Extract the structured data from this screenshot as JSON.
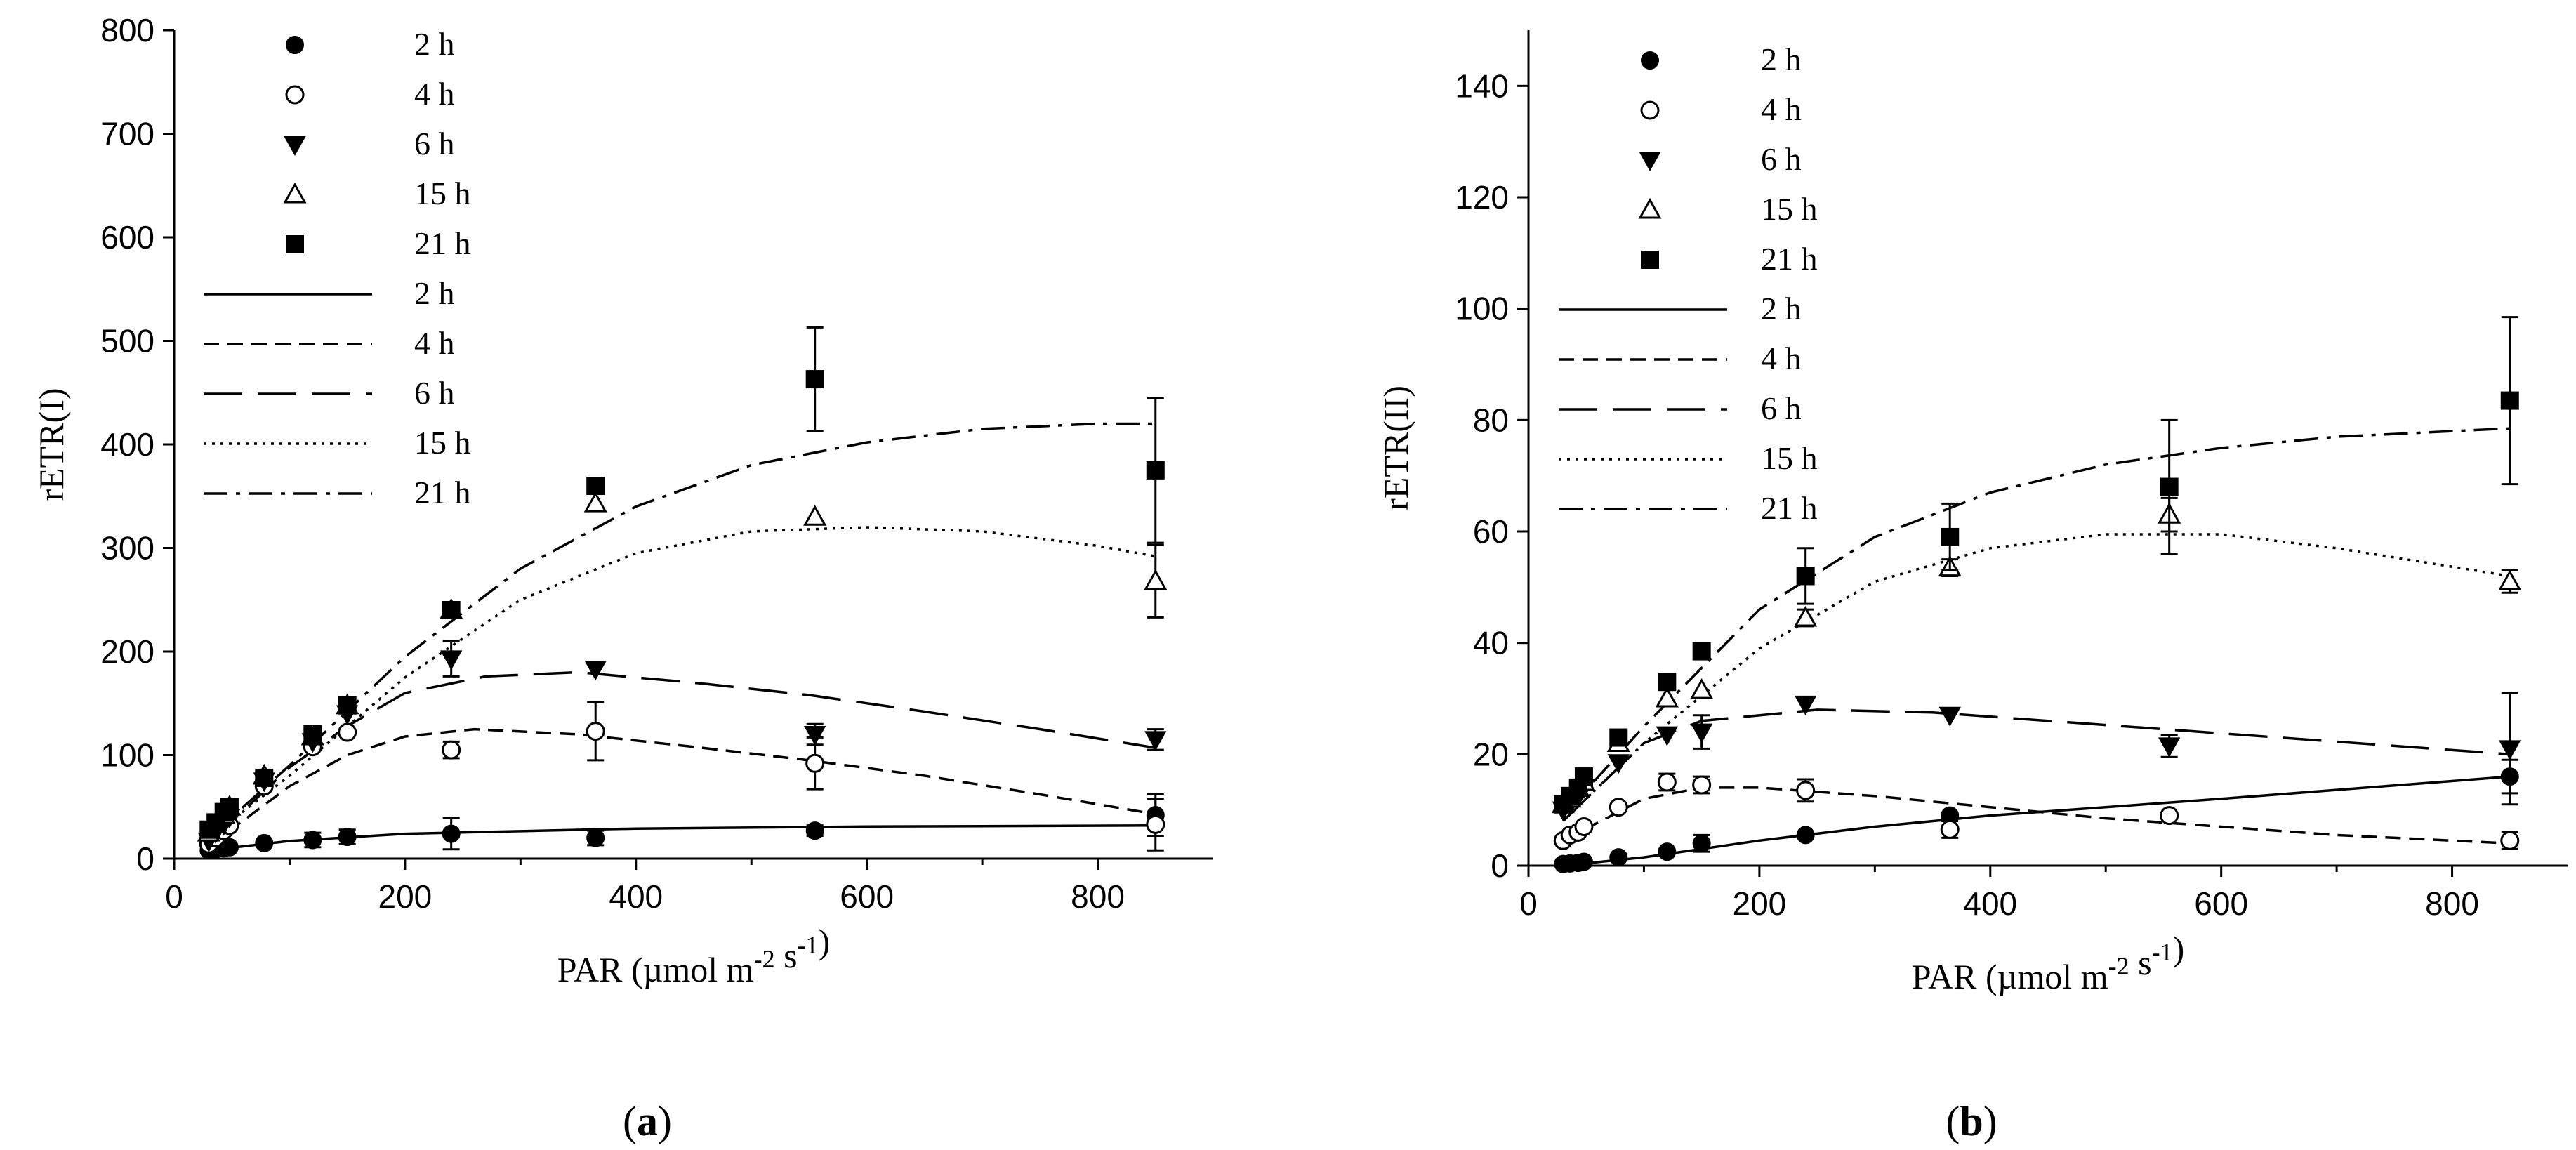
{
  "chart_data": [
    {
      "type": "scatter",
      "panel": "(a)",
      "panel_letter": "a",
      "ylabel": "rETR(I)",
      "xlabel": "PAR (µmol m-2 s-1)",
      "xlim": [
        0,
        900
      ],
      "ylim": [
        0,
        800
      ],
      "xticks": [
        0,
        200,
        400,
        600,
        800
      ],
      "yticks": [
        0,
        100,
        200,
        300,
        400,
        500,
        600,
        700,
        800
      ],
      "legend_markers": [
        "2 h",
        "4 h",
        "6 h",
        "15 h",
        "21 h"
      ],
      "legend_lines": [
        "2 h",
        "4 h",
        "6 h",
        "15 h",
        "21 h"
      ],
      "x": [
        30,
        36,
        43,
        48,
        78,
        120,
        150,
        240,
        365,
        555,
        850
      ],
      "series": [
        {
          "name": "2 h",
          "marker": "filled-circle",
          "line": "solid",
          "values": [
            8,
            9,
            10,
            11,
            15,
            18,
            21,
            24,
            20,
            27,
            42
          ],
          "errors": [
            0,
            0,
            0,
            0,
            0,
            7,
            7,
            15,
            7,
            5,
            20
          ],
          "fit": [
            [
              30,
              8
            ],
            [
              100,
              17
            ],
            [
              200,
              24
            ],
            [
              400,
              29
            ],
            [
              600,
              31
            ],
            [
              850,
              32
            ]
          ]
        },
        {
          "name": "4 h",
          "marker": "open-circle",
          "line": "short-dash",
          "values": [
            14,
            20,
            27,
            32,
            70,
            108,
            122,
            105,
            123,
            92,
            33
          ],
          "errors": [
            0,
            0,
            0,
            0,
            0,
            0,
            0,
            8,
            28,
            25,
            25
          ],
          "fit": [
            [
              30,
              12
            ],
            [
              100,
              70
            ],
            [
              150,
              100
            ],
            [
              200,
              118
            ],
            [
              260,
              125
            ],
            [
              350,
              120
            ],
            [
              450,
              108
            ],
            [
              550,
              95
            ],
            [
              650,
              80
            ],
            [
              750,
              62
            ],
            [
              850,
              43
            ]
          ]
        },
        {
          "name": "6 h",
          "marker": "filled-triangle-down",
          "line": "long-dash",
          "values": [
            17,
            25,
            33,
            40,
            75,
            113,
            140,
            193,
            183,
            120,
            115
          ],
          "errors": [
            0,
            0,
            0,
            0,
            0,
            0,
            0,
            17,
            0,
            10,
            10
          ],
          "fit": [
            [
              30,
              15
            ],
            [
              100,
              88
            ],
            [
              150,
              128
            ],
            [
              200,
              160
            ],
            [
              270,
              176
            ],
            [
              350,
              180
            ],
            [
              450,
              170
            ],
            [
              550,
              158
            ],
            [
              650,
              142
            ],
            [
              750,
              125
            ],
            [
              850,
              107
            ]
          ]
        },
        {
          "name": "15 h",
          "marker": "open-triangle-up",
          "line": "dotted",
          "values": [
            25,
            33,
            42,
            50,
            80,
            118,
            148,
            240,
            343,
            330,
            268
          ],
          "errors": [
            0,
            0,
            0,
            0,
            0,
            0,
            0,
            0,
            0,
            0,
            35
          ],
          "fit": [
            [
              30,
              20
            ],
            [
              100,
              80
            ],
            [
              200,
              175
            ],
            [
              300,
              250
            ],
            [
              400,
              295
            ],
            [
              500,
              316
            ],
            [
              600,
              320
            ],
            [
              700,
              316
            ],
            [
              800,
              302
            ],
            [
              850,
              292
            ]
          ]
        },
        {
          "name": "21 h",
          "marker": "filled-square",
          "line": "dash-dot",
          "values": [
            28,
            35,
            45,
            50,
            78,
            120,
            148,
            240,
            360,
            463,
            375
          ],
          "errors": [
            0,
            0,
            0,
            0,
            0,
            0,
            0,
            0,
            6,
            50,
            70
          ],
          "fit": [
            [
              30,
              20
            ],
            [
              100,
              90
            ],
            [
              200,
              195
            ],
            [
              300,
              280
            ],
            [
              400,
              340
            ],
            [
              500,
              380
            ],
            [
              600,
              402
            ],
            [
              700,
              415
            ],
            [
              800,
              420
            ],
            [
              850,
              420
            ]
          ]
        }
      ]
    },
    {
      "type": "scatter",
      "panel": "(b)",
      "panel_letter": "b",
      "ylabel": "rETR(II)",
      "xlabel": "PAR (µmol m-2 s-1)",
      "xlim": [
        0,
        900
      ],
      "ylim": [
        0,
        150
      ],
      "xticks": [
        0,
        200,
        400,
        600,
        800
      ],
      "yticks": [
        0,
        20,
        40,
        60,
        80,
        100,
        120,
        140
      ],
      "legend_markers": [
        "2 h",
        "4 h",
        "6 h",
        "15 h",
        "21 h"
      ],
      "legend_lines": [
        "2 h",
        "4 h",
        "6 h",
        "15 h",
        "21 h"
      ],
      "x": [
        30,
        36,
        43,
        48,
        78,
        120,
        150,
        240,
        365,
        555,
        850
      ],
      "series": [
        {
          "name": "2 h",
          "marker": "filled-circle",
          "line": "solid",
          "values": [
            0.3,
            0.4,
            0.5,
            0.7,
            1.5,
            2.5,
            4,
            5.5,
            9,
            9,
            16
          ],
          "errors": [
            0,
            0,
            0,
            0,
            0,
            0,
            1.5,
            0,
            0,
            0,
            3
          ],
          "fit": [
            [
              30,
              0
            ],
            [
              100,
              1.5
            ],
            [
              200,
              4.5
            ],
            [
              300,
              7
            ],
            [
              400,
              9
            ],
            [
              600,
              12
            ],
            [
              850,
              16
            ]
          ]
        },
        {
          "name": "4 h",
          "marker": "open-circle",
          "line": "short-dash",
          "values": [
            4.5,
            5.5,
            6,
            7,
            10.5,
            15,
            14.5,
            13.5,
            6.5,
            9,
            4.5
          ],
          "errors": [
            0,
            0,
            0,
            0,
            0,
            1.5,
            1.5,
            2,
            1.5,
            0,
            1.5
          ],
          "fit": [
            [
              30,
              4.5
            ],
            [
              100,
              12
            ],
            [
              150,
              14
            ],
            [
              200,
              14
            ],
            [
              300,
              12.5
            ],
            [
              400,
              10.5
            ],
            [
              500,
              8.5
            ],
            [
              600,
              7
            ],
            [
              700,
              5.5
            ],
            [
              850,
              4
            ]
          ]
        },
        {
          "name": "6 h",
          "marker": "filled-triangle-down",
          "line": "long-dash",
          "values": [
            10,
            11,
            12.5,
            14,
            18.5,
            23.5,
            24,
            29,
            27,
            21.5,
            21
          ],
          "errors": [
            0,
            0,
            0,
            0,
            0,
            0,
            3,
            0,
            0,
            2,
            10
          ],
          "fit": [
            [
              30,
              8
            ],
            [
              100,
              22
            ],
            [
              150,
              26
            ],
            [
              250,
              28
            ],
            [
              350,
              27.5
            ],
            [
              450,
              26
            ],
            [
              550,
              24.5
            ],
            [
              650,
              23
            ],
            [
              750,
              21.5
            ],
            [
              850,
              20
            ]
          ]
        },
        {
          "name": "15 h",
          "marker": "open-triangle-up",
          "line": "dotted",
          "values": [
            11,
            12,
            14,
            15,
            22,
            30,
            31.5,
            44.5,
            53.5,
            63,
            51
          ],
          "errors": [
            0,
            0,
            0,
            0,
            0,
            0,
            0,
            1.5,
            1.5,
            3,
            2
          ],
          "fit": [
            [
              30,
              8
            ],
            [
              100,
              22
            ],
            [
              200,
              39
            ],
            [
              300,
              51
            ],
            [
              400,
              57
            ],
            [
              500,
              59.5
            ],
            [
              600,
              59.5
            ],
            [
              700,
              57
            ],
            [
              850,
              52
            ]
          ]
        },
        {
          "name": "21 h",
          "marker": "filled-square",
          "line": "dash-dot",
          "values": [
            11,
            12.5,
            14,
            16,
            23,
            33,
            38.5,
            52,
            59,
            68,
            83.5
          ],
          "errors": [
            0,
            0,
            0,
            0,
            0,
            0,
            0,
            5,
            6,
            12,
            15
          ],
          "fit": [
            [
              30,
              9
            ],
            [
              100,
              25
            ],
            [
              200,
              46
            ],
            [
              300,
              59
            ],
            [
              400,
              67
            ],
            [
              500,
              72
            ],
            [
              600,
              75
            ],
            [
              700,
              77
            ],
            [
              850,
              78.5
            ]
          ]
        }
      ]
    }
  ]
}
